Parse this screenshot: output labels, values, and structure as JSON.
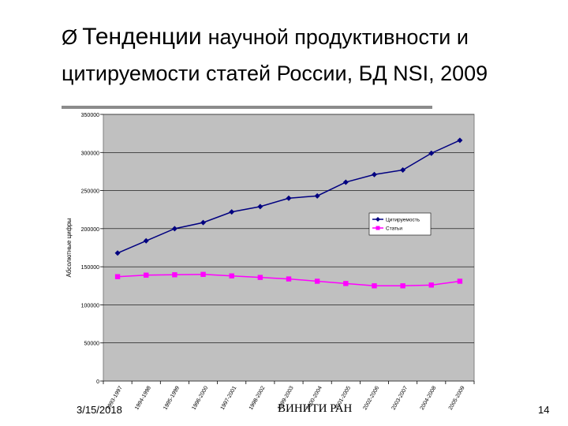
{
  "slide": {
    "title_bullet": "Ø",
    "title_line1_word1": "Тенденции",
    "title_line1_rest": "научной продуктивности и",
    "title_line2": "цитируемости статей России, БД NSI, 2009",
    "footer_date": "3/15/2018",
    "footer_org": "ВИНИТИ РАН",
    "page_number": "14"
  },
  "colors": {
    "plot_background": "#c0c0c0",
    "citations": "#000080",
    "articles": "#ff00ff",
    "rule": "#8c8c8c"
  },
  "chart_data": {
    "type": "line",
    "title": "",
    "xlabel": "",
    "ylabel": "Абсолютные цифры",
    "ylim": [
      0,
      350000
    ],
    "yticks": [
      0,
      50000,
      100000,
      150000,
      200000,
      250000,
      300000,
      350000
    ],
    "ytick_labels": [
      "0",
      "50000",
      "100000",
      "150000",
      "200000",
      "250000",
      "300000",
      "350000"
    ],
    "grid": "horizontal",
    "legend_position": "right",
    "categories": [
      "1993-1997",
      "1994-1998",
      "1995-1999",
      "1996-2000",
      "1997-2001",
      "1998-2002",
      "1999-2003",
      "2000-2004",
      "2001-2005",
      "2002-2006",
      "2003-2007",
      "2004-2008",
      "2005-2009"
    ],
    "series": [
      {
        "name": "Цитируемость",
        "marker": "diamond",
        "values": [
          168000,
          184000,
          200000,
          208000,
          222000,
          229000,
          240000,
          243000,
          261000,
          271000,
          277000,
          299000,
          316000
        ]
      },
      {
        "name": "Статьи",
        "marker": "square",
        "values": [
          137000,
          139000,
          139500,
          140000,
          138000,
          136000,
          134000,
          131000,
          128000,
          125000,
          125000,
          126000,
          131000
        ]
      }
    ]
  }
}
